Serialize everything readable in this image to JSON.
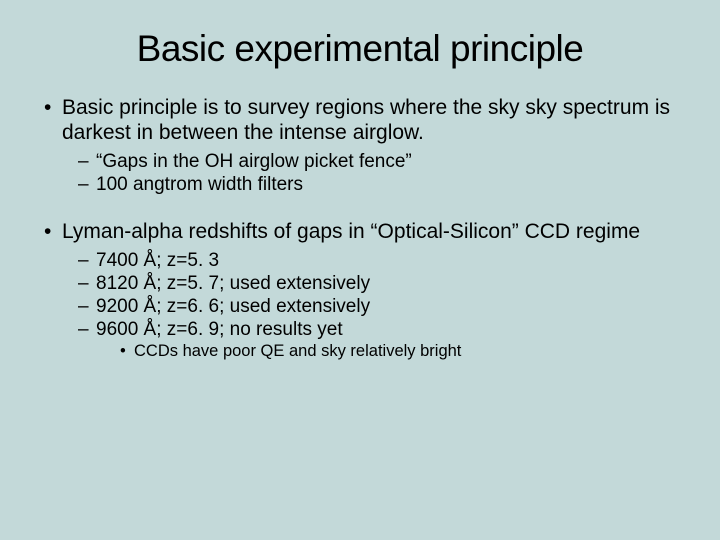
{
  "background_color": "#c3d9d9",
  "text_color": "#000000",
  "font_family": "Arial",
  "title": {
    "text": "Basic experimental principle",
    "fontsize": 37
  },
  "bullets": [
    {
      "level": 1,
      "text": "Basic principle is to survey regions where the sky sky spectrum is darkest in between the intense airglow."
    },
    {
      "level": 2,
      "text": "“Gaps in the OH airglow picket fence”"
    },
    {
      "level": 2,
      "text": "100 angtrom width filters"
    },
    {
      "level": 1,
      "text": "Lyman-alpha redshifts of gaps in “Optical-Silicon” CCD regime"
    },
    {
      "level": 2,
      "text": "7400 Å; z=5. 3"
    },
    {
      "level": 2,
      "text": "8120 Å; z=5. 7; used extensively"
    },
    {
      "level": 2,
      "text": "9200 Å; z=6. 6; used extensively"
    },
    {
      "level": 2,
      "text": "9600 Å; z=6. 9; no results yet"
    },
    {
      "level": 3,
      "text": "CCDs have poor QE and sky relatively bright"
    }
  ]
}
